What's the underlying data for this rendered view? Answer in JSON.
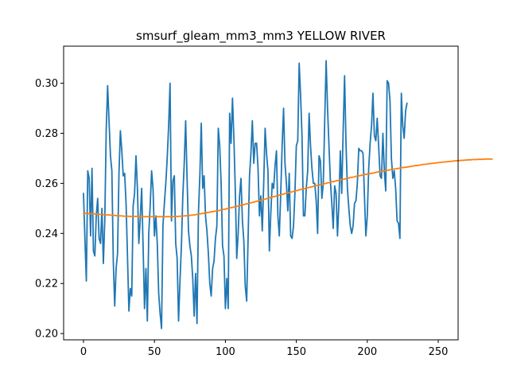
{
  "chart_data": {
    "type": "line",
    "title": "smsurf_gleam_mm3_mm3 YELLOW RIVER",
    "xlabel": "",
    "ylabel": "",
    "xlim": [
      -14,
      264
    ],
    "ylim": [
      0.1975,
      0.3148
    ],
    "grid": false,
    "legend": "none",
    "x_ticks": [
      0,
      50,
      100,
      150,
      200,
      250
    ],
    "x_tick_labels": [
      "0",
      "50",
      "100",
      "150",
      "200",
      "250"
    ],
    "y_ticks": [
      0.2,
      0.22,
      0.24,
      0.26,
      0.28,
      0.3
    ],
    "y_tick_labels": [
      "0.20",
      "0.22",
      "0.24",
      "0.26",
      "0.28",
      "0.30"
    ],
    "series": [
      {
        "color": "#1f77b4",
        "x_start": 0,
        "x_step": 1,
        "values": [
          0.256,
          0.238,
          0.221,
          0.265,
          0.262,
          0.239,
          0.266,
          0.233,
          0.231,
          0.247,
          0.254,
          0.238,
          0.236,
          0.25,
          0.228,
          0.245,
          0.281,
          0.299,
          0.285,
          0.271,
          0.265,
          0.229,
          0.211,
          0.226,
          0.232,
          0.264,
          0.281,
          0.273,
          0.263,
          0.264,
          0.252,
          0.231,
          0.209,
          0.218,
          0.215,
          0.251,
          0.256,
          0.271,
          0.258,
          0.236,
          0.246,
          0.258,
          0.235,
          0.21,
          0.226,
          0.205,
          0.24,
          0.251,
          0.265,
          0.258,
          0.239,
          0.247,
          0.236,
          0.216,
          0.208,
          0.202,
          0.243,
          0.252,
          0.26,
          0.27,
          0.283,
          0.3,
          0.245,
          0.261,
          0.263,
          0.236,
          0.23,
          0.205,
          0.221,
          0.235,
          0.255,
          0.268,
          0.285,
          0.262,
          0.241,
          0.235,
          0.231,
          0.222,
          0.207,
          0.224,
          0.204,
          0.248,
          0.263,
          0.284,
          0.258,
          0.263,
          0.247,
          0.241,
          0.232,
          0.22,
          0.215,
          0.226,
          0.229,
          0.238,
          0.243,
          0.282,
          0.275,
          0.26,
          0.235,
          0.231,
          0.21,
          0.222,
          0.21,
          0.288,
          0.276,
          0.294,
          0.278,
          0.257,
          0.23,
          0.24,
          0.255,
          0.262,
          0.245,
          0.237,
          0.219,
          0.213,
          0.238,
          0.263,
          0.272,
          0.285,
          0.268,
          0.276,
          0.276,
          0.266,
          0.247,
          0.255,
          0.241,
          0.26,
          0.282,
          0.272,
          0.265,
          0.233,
          0.248,
          0.26,
          0.258,
          0.267,
          0.273,
          0.247,
          0.239,
          0.256,
          0.275,
          0.29,
          0.268,
          0.26,
          0.249,
          0.264,
          0.239,
          0.238,
          0.243,
          0.256,
          0.275,
          0.277,
          0.308,
          0.295,
          0.279,
          0.247,
          0.247,
          0.258,
          0.265,
          0.288,
          0.275,
          0.266,
          0.26,
          0.26,
          0.253,
          0.24,
          0.271,
          0.269,
          0.254,
          0.26,
          0.285,
          0.309,
          0.29,
          0.275,
          0.261,
          0.252,
          0.242,
          0.259,
          0.256,
          0.239,
          0.252,
          0.273,
          0.256,
          0.281,
          0.303,
          0.276,
          0.258,
          0.25,
          0.243,
          0.24,
          0.243,
          0.252,
          0.253,
          0.26,
          0.274,
          0.273,
          0.273,
          0.272,
          0.255,
          0.239,
          0.247,
          0.266,
          0.276,
          0.283,
          0.296,
          0.279,
          0.277,
          0.286,
          0.275,
          0.263,
          0.262,
          0.28,
          0.265,
          0.257,
          0.301,
          0.3,
          0.293,
          0.27,
          0.262,
          0.265,
          0.258,
          0.245,
          0.244,
          0.238,
          0.296,
          0.283,
          0.278,
          0.289,
          0.292
        ]
      },
      {
        "color": "#ff7f0e",
        "x_start": 0,
        "x_step": 1,
        "values": [
          0.2479,
          0.248,
          0.248,
          0.2479,
          0.2479,
          0.2479,
          0.2478,
          0.2478,
          0.2478,
          0.2477,
          0.2477,
          0.2476,
          0.2476,
          0.2476,
          0.2475,
          0.2475,
          0.2474,
          0.2474,
          0.2474,
          0.2473,
          0.2473,
          0.2472,
          0.2472,
          0.2471,
          0.2471,
          0.247,
          0.247,
          0.247,
          0.2469,
          0.2469,
          0.2469,
          0.2469,
          0.2468,
          0.2468,
          0.2468,
          0.2468,
          0.2468,
          0.2468,
          0.2468,
          0.2467,
          0.2467,
          0.2467,
          0.2467,
          0.2467,
          0.2467,
          0.2467,
          0.2467,
          0.2467,
          0.2467,
          0.2467,
          0.2467,
          0.2467,
          0.2467,
          0.2467,
          0.2467,
          0.2467,
          0.2467,
          0.2467,
          0.2467,
          0.2467,
          0.2467,
          0.2467,
          0.2467,
          0.2467,
          0.2468,
          0.2468,
          0.2468,
          0.2468,
          0.2469,
          0.2469,
          0.2469,
          0.247,
          0.247,
          0.2471,
          0.2471,
          0.2472,
          0.2473,
          0.2473,
          0.2474,
          0.2475,
          0.2476,
          0.2477,
          0.2478,
          0.2479,
          0.248,
          0.2481,
          0.2482,
          0.2483,
          0.2484,
          0.2485,
          0.2486,
          0.2487,
          0.2488,
          0.2489,
          0.249,
          0.2491,
          0.2492,
          0.2493,
          0.2495,
          0.2496,
          0.2497,
          0.2499,
          0.25,
          0.2501,
          0.2503,
          0.2504,
          0.2505,
          0.2507,
          0.2508,
          0.251,
          0.2511,
          0.2512,
          0.2514,
          0.2515,
          0.2517,
          0.2518,
          0.2519,
          0.2521,
          0.2522,
          0.2524,
          0.2525,
          0.2527,
          0.2528,
          0.253,
          0.2531,
          0.2533,
          0.2534,
          0.2536,
          0.2537,
          0.2539,
          0.254,
          0.2542,
          0.2544,
          0.2545,
          0.2547,
          0.2548,
          0.255,
          0.2551,
          0.2553,
          0.2554,
          0.2556,
          0.2557,
          0.2559,
          0.256,
          0.2562,
          0.2563,
          0.2565,
          0.2566,
          0.2568,
          0.2569,
          0.2571,
          0.2572,
          0.2574,
          0.2575,
          0.2577,
          0.2578,
          0.2579,
          0.2581,
          0.2582,
          0.2584,
          0.2585,
          0.2586,
          0.2588,
          0.2589,
          0.2591,
          0.2592,
          0.2593,
          0.2595,
          0.2596,
          0.2597,
          0.2599,
          0.26,
          0.2602,
          0.2603,
          0.2604,
          0.2606,
          0.2607,
          0.2608,
          0.261,
          0.2611,
          0.2612,
          0.2614,
          0.2615,
          0.2616,
          0.2617,
          0.2619,
          0.262,
          0.2621,
          0.2623,
          0.2624,
          0.2625,
          0.2626,
          0.2628,
          0.2629,
          0.263,
          0.2631,
          0.2632,
          0.2634,
          0.2635,
          0.2636,
          0.2637,
          0.2638,
          0.2639,
          0.264,
          0.2641,
          0.2642,
          0.2644,
          0.2645,
          0.2646,
          0.2647,
          0.2648,
          0.2649,
          0.265,
          0.2651,
          0.2652,
          0.2653,
          0.2654,
          0.2655,
          0.2656,
          0.2657,
          0.2658,
          0.2659,
          0.266,
          0.2661,
          0.2662,
          0.2663,
          0.2664,
          0.2664,
          0.2665,
          0.2666,
          0.2667,
          0.2668,
          0.2669,
          0.267,
          0.2671,
          0.2671,
          0.2672,
          0.2673,
          0.2674,
          0.2675,
          0.2676,
          0.2676,
          0.2677,
          0.2678,
          0.2679,
          0.2679,
          0.268,
          0.2681,
          0.2681,
          0.2682,
          0.2683,
          0.2683,
          0.2684,
          0.2685,
          0.2685,
          0.2686,
          0.2686,
          0.2687,
          0.2687,
          0.2688,
          0.2689,
          0.2689,
          0.269,
          0.269,
          0.2691,
          0.2691,
          0.2692,
          0.2692,
          0.2692,
          0.2693,
          0.2693,
          0.2694,
          0.2694,
          0.2694,
          0.2695,
          0.2695,
          0.2695,
          0.2695,
          0.2696,
          0.2696,
          0.2696,
          0.2696,
          0.2696,
          0.2697,
          0.2697,
          0.2697,
          0.2697,
          0.2697,
          0.2697
        ]
      }
    ]
  }
}
